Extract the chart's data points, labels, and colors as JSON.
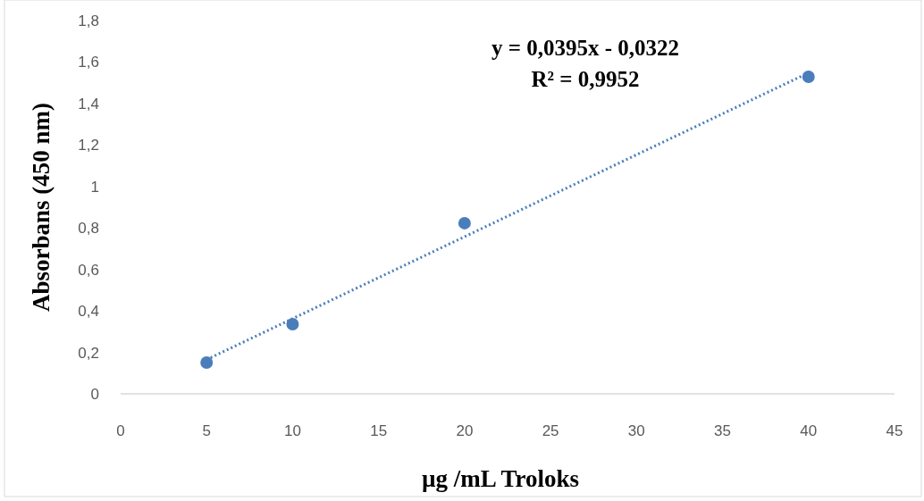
{
  "chart_data": {
    "type": "scatter",
    "xlabel": "µg /mL Troloks",
    "ylabel": "Absorbans (450 nm)",
    "xlim": [
      0,
      45
    ],
    "xticks": [
      0,
      5,
      10,
      15,
      20,
      25,
      30,
      35,
      40,
      45
    ],
    "ylim": [
      0,
      1.8
    ],
    "yticks": [
      0,
      {
        "value": 0.2,
        "label": "0,2"
      },
      {
        "value": 0.4,
        "label": "0,4"
      },
      {
        "value": 0.6,
        "label": "0,6"
      },
      {
        "value": 0.8,
        "label": "0,8"
      },
      1,
      {
        "value": 1.2,
        "label": "1,2"
      },
      {
        "value": 1.4,
        "label": "1,4"
      },
      {
        "value": 1.6,
        "label": "1,6"
      },
      {
        "value": 1.8,
        "label": "1,8"
      }
    ],
    "grid": false,
    "series": [
      {
        "color": "#4a7ebb",
        "marker": "circle",
        "x": [
          5,
          10,
          20,
          40
        ],
        "values": [
          0.151,
          0.336,
          0.823,
          1.529
        ]
      },
      {
        "type": "line",
        "color": "#4a7ebb",
        "line_style": "dotted",
        "marker": "none",
        "x": [
          5,
          40
        ],
        "values": [
          0.165,
          1.548
        ]
      }
    ],
    "annotations": [
      "y = 0,0395x - 0,0322",
      "R² = 0,9952"
    ]
  }
}
